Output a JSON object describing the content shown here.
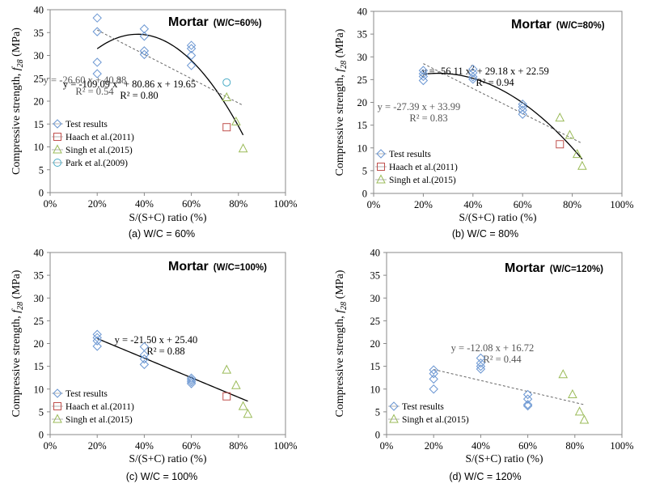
{
  "figure": {
    "captions": [
      "(a) W/C = 60%",
      "(b) W/C = 80%",
      "(c) W/C = 100%",
      "(d) W/C = 120%"
    ]
  },
  "colors": {
    "test": "#6a96d2",
    "haach": "#c0504d",
    "singh": "#9bbb59",
    "park": "#4bacc6",
    "fit": "#000000",
    "linear": "#666666"
  },
  "chart_data": [
    {
      "type": "scatter",
      "title": "Mortar",
      "subtitle": "(W/C=60%)",
      "xlabel": "S/(S+C) ratio  (%)",
      "ylabel_prefix": "Compressive strength, ",
      "ylabel_var": "f",
      "ylabel_sub": "28",
      "ylabel_unit": " (MPa)",
      "xlim": [
        0,
        1
      ],
      "ylim": [
        0,
        40
      ],
      "xticks": [
        "0%",
        "20%",
        "40%",
        "60%",
        "80%",
        "100%"
      ],
      "yticks": [
        "0",
        "5",
        "10",
        "15",
        "20",
        "25",
        "30",
        "35",
        "40"
      ],
      "grid": false,
      "legend_position": "bottom-left",
      "series": [
        {
          "name": "Test results",
          "marker": "diamond",
          "color": "#6a96d2",
          "x": [
            0.2,
            0.2,
            0.2,
            0.2,
            0.4,
            0.4,
            0.4,
            0.4,
            0.6,
            0.6,
            0.6,
            0.6
          ],
          "y": [
            38.2,
            35.2,
            28.5,
            26.0,
            35.8,
            34.2,
            31.0,
            30.2,
            32.2,
            31.5,
            30.0,
            27.8
          ]
        },
        {
          "name": "Haach et al.(2011)",
          "marker": "square",
          "color": "#c0504d",
          "x": [
            0.75
          ],
          "y": [
            14.3
          ]
        },
        {
          "name": "Singh et al.(2015)",
          "marker": "triangle",
          "color": "#9bbb59",
          "x": [
            0.75,
            0.79,
            0.82
          ],
          "y": [
            20.8,
            15.5,
            9.6
          ]
        },
        {
          "name": "Park et al.(2009)",
          "marker": "circle",
          "color": "#4bacc6",
          "x": [
            0.75
          ],
          "y": [
            24.1
          ]
        }
      ],
      "fits": [
        {
          "kind": "poly2",
          "coef": [
            -109.09,
            80.86,
            19.65
          ],
          "x_range": [
            0.2,
            0.82
          ],
          "style": "solid",
          "equation_pre": "y = -109.09 x",
          "equation_sup": "2",
          "equation_post": " + 80.86 x + 19.65",
          "r2": "R² = 0.80"
        },
        {
          "kind": "linear",
          "coef": [
            -26.6,
            40.88
          ],
          "x_range": [
            0.2,
            0.82
          ],
          "style": "dashed",
          "equation": "y = -26.60 x + 40.88",
          "r2": "R² = 0.54"
        }
      ]
    },
    {
      "type": "scatter",
      "title": "Mortar",
      "subtitle": "(W/C=80%)",
      "xlabel": "S/(S+C) ratio  (%)",
      "ylabel_prefix": "Compressive strength, ",
      "ylabel_var": "f",
      "ylabel_sub": "28",
      "ylabel_unit": " (MPa)",
      "xlim": [
        0,
        1
      ],
      "ylim": [
        0,
        40
      ],
      "xticks": [
        "0%",
        "20%",
        "40%",
        "60%",
        "80%",
        "100%"
      ],
      "yticks": [
        "0",
        "5",
        "10",
        "15",
        "20",
        "25",
        "30",
        "35",
        "40"
      ],
      "grid": false,
      "legend_position": "bottom-left",
      "series": [
        {
          "name": "Test results",
          "marker": "diamond",
          "color": "#6a96d2",
          "x": [
            0.2,
            0.2,
            0.2,
            0.2,
            0.4,
            0.4,
            0.4,
            0.4,
            0.6,
            0.6,
            0.6,
            0.6
          ],
          "y": [
            27.0,
            26.3,
            25.7,
            24.8,
            27.3,
            26.5,
            25.6,
            25.1,
            19.6,
            19.0,
            18.3,
            17.4
          ]
        },
        {
          "name": "Haach et al.(2011)",
          "marker": "square",
          "color": "#c0504d",
          "x": [
            0.75
          ],
          "y": [
            10.8
          ]
        },
        {
          "name": "Singh et al.(2015)",
          "marker": "triangle",
          "color": "#9bbb59",
          "x": [
            0.75,
            0.79,
            0.82,
            0.84
          ],
          "y": [
            16.6,
            12.8,
            8.6,
            6.0
          ]
        }
      ],
      "fits": [
        {
          "kind": "poly2",
          "coef": [
            -56.11,
            29.18,
            22.59
          ],
          "x_range": [
            0.2,
            0.84
          ],
          "style": "solid",
          "equation_pre": "y = -56.11 x",
          "equation_sup": "2",
          "equation_post": " + 29.18 x + 22.59",
          "r2": "R² = 0.94"
        },
        {
          "kind": "linear",
          "coef": [
            -27.39,
            33.99
          ],
          "x_range": [
            0.2,
            0.84
          ],
          "style": "dashed",
          "equation": "y = -27.39 x + 33.99",
          "r2": "R² = 0.83"
        }
      ]
    },
    {
      "type": "scatter",
      "title": "Mortar",
      "subtitle": "(W/C=100%)",
      "xlabel": "S/(S+C) ratio  (%)",
      "ylabel_prefix": "Compressive strength, ",
      "ylabel_var": "f",
      "ylabel_sub": "28",
      "ylabel_unit": " (MPa)",
      "xlim": [
        0,
        1
      ],
      "ylim": [
        0,
        40
      ],
      "xticks": [
        "0%",
        "20%",
        "40%",
        "60%",
        "80%",
        "100%"
      ],
      "yticks": [
        "0",
        "5",
        "10",
        "15",
        "20",
        "25",
        "30",
        "35",
        "40"
      ],
      "grid": false,
      "legend_position": "bottom-left",
      "series": [
        {
          "name": "Test results",
          "marker": "diamond",
          "color": "#6a96d2",
          "x": [
            0.2,
            0.2,
            0.2,
            0.2,
            0.4,
            0.4,
            0.4,
            0.4,
            0.6,
            0.6,
            0.6,
            0.6
          ],
          "y": [
            22.0,
            21.3,
            20.6,
            19.4,
            19.3,
            17.5,
            16.6,
            15.4,
            12.4,
            12.0,
            11.6,
            11.2
          ]
        },
        {
          "name": "Haach et al.(2011)",
          "marker": "square",
          "color": "#c0504d",
          "x": [
            0.75
          ],
          "y": [
            8.4
          ]
        },
        {
          "name": "Singh et al.(2015)",
          "marker": "triangle",
          "color": "#9bbb59",
          "x": [
            0.75,
            0.79,
            0.82,
            0.84
          ],
          "y": [
            14.2,
            10.8,
            6.2,
            4.5
          ]
        }
      ],
      "fits": [
        {
          "kind": "linear",
          "coef": [
            -21.5,
            25.4
          ],
          "x_range": [
            0.2,
            0.84
          ],
          "style": "solid",
          "equation": "y = -21.50 x + 25.40",
          "r2": "R² = 0.88"
        }
      ]
    },
    {
      "type": "scatter",
      "title": "Mortar",
      "subtitle": "(W/C=120%)",
      "xlabel": "S/(S+C) ratio  (%)",
      "ylabel_prefix": "Compressive strength, ",
      "ylabel_var": "f",
      "ylabel_sub": "28",
      "ylabel_unit": " (MPa)",
      "xlim": [
        0,
        1
      ],
      "ylim": [
        0,
        40
      ],
      "xticks": [
        "0%",
        "20%",
        "40%",
        "60%",
        "80%",
        "100%"
      ],
      "yticks": [
        "0",
        "5",
        "10",
        "15",
        "20",
        "25",
        "30",
        "35",
        "40"
      ],
      "grid": false,
      "legend_position": "bottom-left",
      "series": [
        {
          "name": "Test results",
          "marker": "diamond",
          "color": "#6a96d2",
          "x": [
            0.2,
            0.2,
            0.2,
            0.2,
            0.4,
            0.4,
            0.4,
            0.4,
            0.6,
            0.6,
            0.6,
            0.6
          ],
          "y": [
            14.2,
            13.4,
            12.2,
            10.0,
            16.8,
            15.7,
            15.0,
            14.4,
            8.8,
            7.8,
            6.6,
            6.3
          ]
        },
        {
          "name": "Singh et al.(2015)",
          "marker": "triangle",
          "color": "#9bbb59",
          "x": [
            0.75,
            0.79,
            0.82,
            0.84
          ],
          "y": [
            13.2,
            8.8,
            5.0,
            3.2
          ]
        }
      ],
      "fits": [
        {
          "kind": "linear",
          "coef": [
            -12.08,
            16.72
          ],
          "x_range": [
            0.2,
            0.84
          ],
          "style": "dashed",
          "equation": "y = -12.08 x + 16.72",
          "r2": "R² = 0.44"
        }
      ]
    }
  ]
}
